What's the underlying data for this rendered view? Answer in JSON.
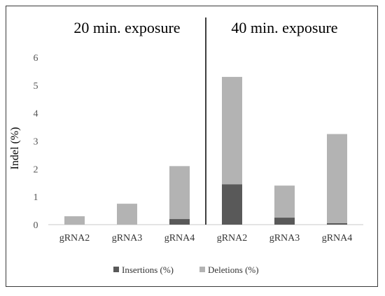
{
  "chart_data": {
    "type": "bar",
    "stacked": true,
    "ylabel": "Indel (%)",
    "ylim": [
      0,
      6
    ],
    "yticks": [
      0,
      1,
      2,
      3,
      4,
      5,
      6
    ],
    "grid": false,
    "legend_position": "bottom",
    "groups": [
      {
        "label": "20 min. exposure",
        "categories": [
          "gRNA2",
          "gRNA3",
          "gRNA4"
        ]
      },
      {
        "label": "40 min. exposure",
        "categories": [
          "gRNA2",
          "gRNA3",
          "gRNA4"
        ]
      }
    ],
    "categories": [
      "gRNA2",
      "gRNA3",
      "gRNA4",
      "gRNA2",
      "gRNA3",
      "gRNA4"
    ],
    "series": [
      {
        "name": "Insertions (%)",
        "color": "#595959",
        "values": [
          0.0,
          0.0,
          0.2,
          1.45,
          0.25,
          0.05
        ]
      },
      {
        "name": "Deletions (%)",
        "color": "#b3b3b3",
        "values": [
          0.3,
          0.75,
          1.9,
          3.85,
          1.15,
          3.2
        ]
      }
    ]
  }
}
